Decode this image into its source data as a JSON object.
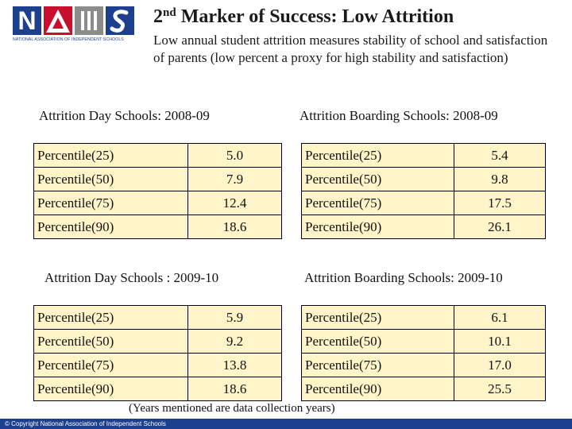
{
  "logo": {
    "letter": "N",
    "caption": "NATIONAL ASSOCIATION OF INDEPENDENT SCHOOLS"
  },
  "header": {
    "title_number": "2",
    "title_sup": "nd",
    "title_rest": " Marker of Success: Low Attrition",
    "subtitle": "Low annual student attrition measures stability of school and satisfaction of parents (low percent a proxy for high stability and satisfaction)"
  },
  "sections": {
    "day_2008": {
      "title": "Attrition Day Schools: 2008-09",
      "rows": [
        {
          "label": "Percentile(25)",
          "value": "5.0"
        },
        {
          "label": "Percentile(50)",
          "value": "7.9"
        },
        {
          "label": "Percentile(75)",
          "value": "12.4"
        },
        {
          "label": "Percentile(90)",
          "value": "18.6"
        }
      ]
    },
    "boarding_2008": {
      "title": "Attrition Boarding Schools: 2008-09",
      "rows": [
        {
          "label": "Percentile(25)",
          "value": "5.4"
        },
        {
          "label": "Percentile(50)",
          "value": "9.8"
        },
        {
          "label": "Percentile(75)",
          "value": "17.5"
        },
        {
          "label": "Percentile(90)",
          "value": "26.1"
        }
      ]
    },
    "day_2009": {
      "title": "Attrition Day Schools : 2009-10",
      "rows": [
        {
          "label": "Percentile(25)",
          "value": "5.9"
        },
        {
          "label": "Percentile(50)",
          "value": "9.2"
        },
        {
          "label": "Percentile(75)",
          "value": "13.8"
        },
        {
          "label": "Percentile(90)",
          "value": "18.6"
        }
      ]
    },
    "boarding_2009": {
      "title": "Attrition Boarding Schools: 2009-10",
      "rows": [
        {
          "label": "Percentile(25)",
          "value": "6.1"
        },
        {
          "label": "Percentile(50)",
          "value": "10.1"
        },
        {
          "label": "Percentile(75)",
          "value": "17.0"
        },
        {
          "label": "Percentile(90)",
          "value": "25.5"
        }
      ]
    }
  },
  "note": "(Years mentioned are data collection years)",
  "footer": {
    "copyright": "© Copyright National Association of Independent Schools"
  },
  "colors": {
    "brand_blue": "#1c3f8e",
    "brand_red": "#c8102e",
    "cell_bg": "#fff5c8"
  }
}
